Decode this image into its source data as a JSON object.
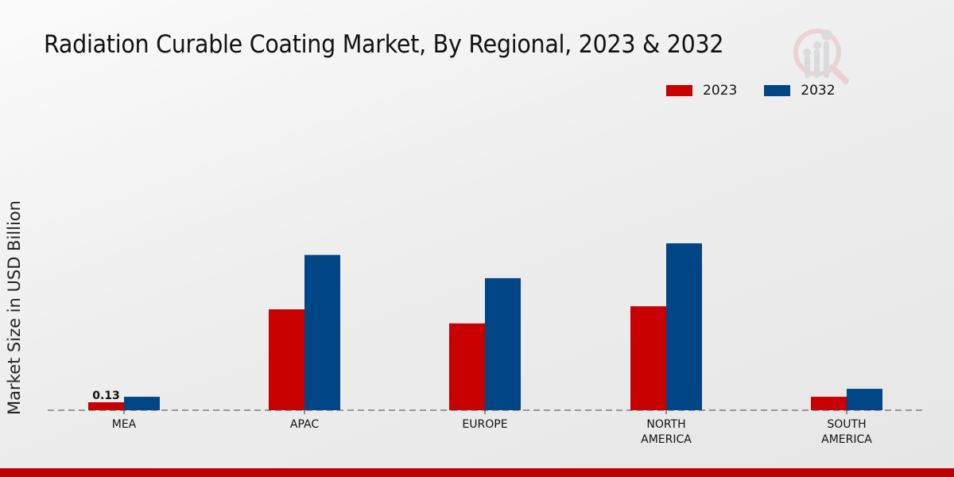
{
  "chart_data": {
    "type": "bar",
    "title": "Radiation Curable Coating Market, By Regional, 2023 & 2032",
    "xlabel": "",
    "ylabel": "Market Size in USD Billion",
    "categories": [
      "MEA",
      "APAC",
      "EUROPE",
      "NORTH AMERICA",
      "SOUTH AMERICA"
    ],
    "category_lines": [
      [
        "MEA"
      ],
      [
        "APAC"
      ],
      [
        "EUROPE"
      ],
      [
        "NORTH",
        "AMERICA"
      ],
      [
        "SOUTH",
        "AMERICA"
      ]
    ],
    "series": [
      {
        "name": "2023",
        "color": "#c80000",
        "values": [
          0.13,
          1.65,
          1.42,
          1.7,
          0.22
        ]
      },
      {
        "name": "2032",
        "color": "#004586",
        "values": [
          0.22,
          2.54,
          2.16,
          2.73,
          0.35
        ]
      }
    ],
    "data_labels": [
      {
        "series": "2023",
        "category": "MEA",
        "text": "0.13"
      }
    ],
    "ylim": [
      0,
      3.5
    ],
    "grid": false,
    "legend_position": "top-right"
  },
  "colors": {
    "accent_bar": "#c00000"
  }
}
